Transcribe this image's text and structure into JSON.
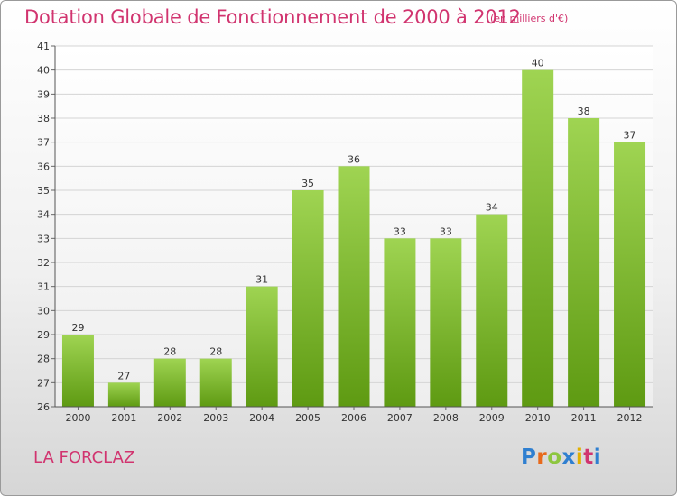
{
  "title": "Dotation Globale de Fonctionnement de 2000 à 2012",
  "unit": "(en milliers d'€)",
  "commune": "LA FORCLAZ",
  "logo": {
    "letters": [
      "P",
      "r",
      "o",
      "x",
      "i",
      "t",
      "i"
    ],
    "colors": [
      "#2f7fd0",
      "#e86a1c",
      "#8dc63f",
      "#2f7fd0",
      "#e2b000",
      "#d1346f",
      "#2f7fd0"
    ]
  },
  "colors": {
    "bar_top": "#9fd452",
    "bar_bottom": "#5e9a12",
    "text_accent": "#d1346f"
  },
  "chart_data": {
    "type": "bar",
    "categories": [
      "2000",
      "2001",
      "2002",
      "2003",
      "2004",
      "2005",
      "2006",
      "2007",
      "2008",
      "2009",
      "2010",
      "2011",
      "2012"
    ],
    "values": [
      29,
      27,
      28,
      28,
      31,
      35,
      36,
      33,
      33,
      34,
      40,
      38,
      37
    ],
    "data_labels": [
      "29",
      "27",
      "28",
      "28",
      "31",
      "35",
      "36",
      "33",
      "33",
      "34",
      "40",
      "38",
      "37"
    ],
    "yticks": [
      "26",
      "27",
      "28",
      "29",
      "30",
      "31",
      "32",
      "33",
      "34",
      "35",
      "36",
      "37",
      "38",
      "39",
      "40",
      "41"
    ],
    "ylim": [
      26,
      41
    ],
    "grid": true
  }
}
